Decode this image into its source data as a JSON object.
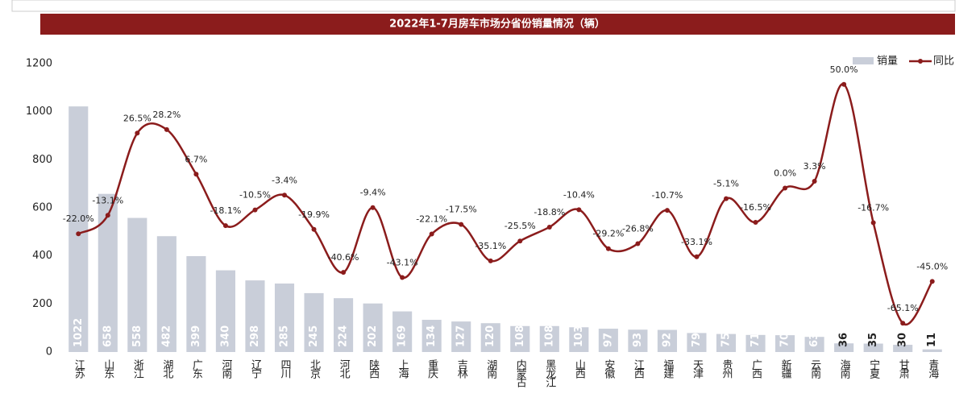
{
  "chart_data": {
    "type": "bar-line",
    "title": "2022年1-7月房车市场分省份销量情况（辆）",
    "categories": [
      "江苏",
      "山东",
      "浙江",
      "湖北",
      "广东",
      "河南",
      "辽宁",
      "四川",
      "北京",
      "河北",
      "陕西",
      "上海",
      "重庆",
      "吉林",
      "湖南",
      "内蒙古",
      "黑龙江",
      "山西",
      "安徽",
      "江西",
      "福建",
      "天津",
      "贵州",
      "广西",
      "新疆",
      "云南",
      "海南",
      "宁夏",
      "甘肃",
      "青海"
    ],
    "series": [
      {
        "name": "销量",
        "type": "bar",
        "color": "#c9ced9",
        "values": [
          1022,
          658,
          558,
          482,
          399,
          340,
          298,
          285,
          245,
          224,
          202,
          169,
          134,
          127,
          120,
          108,
          108,
          103,
          97,
          93,
          92,
          79,
          75,
          71,
          70,
          63,
          36,
          35,
          30,
          11
        ]
      },
      {
        "name": "同比",
        "type": "line",
        "axis": "y2",
        "color": "#8b1c1c",
        "values": [
          -22.0,
          -13.1,
          26.5,
          28.2,
          6.7,
          -18.1,
          -10.5,
          -3.4,
          -19.9,
          -40.6,
          -9.4,
          -43.1,
          -22.1,
          -17.5,
          -35.1,
          -25.5,
          -18.8,
          -10.4,
          -29.2,
          -26.8,
          -10.7,
          -33.1,
          -5.1,
          -16.5,
          0.0,
          3.3,
          50.0,
          -16.7,
          -65.1,
          -45.0
        ],
        "value_labels": [
          "-22.0%",
          "-13.1%",
          "26.5%",
          "28.2%",
          "6.7%",
          "-18.1%",
          "-10.5%",
          "-3.4%",
          "-19.9%",
          "-40.6%",
          "-9.4%",
          "-43.1%",
          "-22.1%",
          "-17.5%",
          "-35.1%",
          "-25.5%",
          "-18.8%",
          "-10.4%",
          "-29.2%",
          "-26.8%",
          "-10.7%",
          "-33.1%",
          "-5.1%",
          "-16.5%",
          "0.0%",
          "3.3%",
          "50.0%",
          "-16.7%",
          "-65.1%",
          "-45.0%"
        ]
      }
    ],
    "ylim": [
      0,
      1200
    ],
    "yticks": [
      0,
      200,
      400,
      600,
      800,
      1000,
      1200
    ],
    "y2lim": [
      -79,
      60
    ],
    "grid": false,
    "legend": "top-right"
  }
}
